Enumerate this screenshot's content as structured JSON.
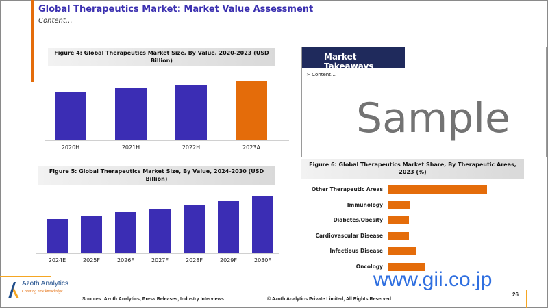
{
  "header": {
    "title": "Global Therapeutics Market: Market Value Assessment",
    "subtitle": "Content…"
  },
  "chart_data": [
    {
      "type": "bar",
      "title": "Figure 4: Global Therapeutics Market Size, By Value, 2020-2023 (USD Billion)",
      "categories": [
        "2020H",
        "2021H",
        "2022H",
        "2023A"
      ],
      "values": [
        71,
        76,
        81,
        86
      ],
      "colors": [
        "#3b2db4",
        "#3b2db4",
        "#3b2db4",
        "#e46c0a"
      ]
    },
    {
      "type": "bar",
      "title": "Figure 5: Global Therapeutics Market Size, By Value, 2024-2030 (USD Billion)",
      "categories": [
        "2024E",
        "2025F",
        "2026F",
        "2027F",
        "2028F",
        "2029F",
        "2030F"
      ],
      "values": [
        50,
        55,
        60,
        65,
        71,
        77,
        83
      ],
      "colors": [
        "#3b2db4"
      ]
    },
    {
      "type": "bar",
      "orientation": "horizontal",
      "title": "Figure 6: Global Therapeutics Market Share, By Therapeutic Areas, 2023 (%)",
      "categories": [
        "Other Therapeutic Areas",
        "Immunology",
        "Diabetes/Obesity",
        "Cardiovascular Disease",
        "Infectious Disease",
        "Oncology"
      ],
      "values": [
        144,
        31,
        30,
        30,
        41,
        53
      ],
      "colors": [
        "#e46c0a"
      ]
    }
  ],
  "takeaways": {
    "title": "Market Takeaways",
    "bullet": "➢",
    "item": "Content…"
  },
  "footer": {
    "logo_name": "Azoth Analytics",
    "logo_tagline": "Creating new knowledge",
    "sources": "Sources: Azoth Analytics, Press Releases, Industry Interviews",
    "copyright": "© Azoth Analytics Private Limited, All Rights Reserved",
    "page": "26"
  },
  "watermark": {
    "sample": "Sample",
    "site": "www.gii.co.jp"
  },
  "colors": {
    "accent": "#e46c0a",
    "primary": "#3b2db4",
    "navy": "#1f2a5c"
  }
}
